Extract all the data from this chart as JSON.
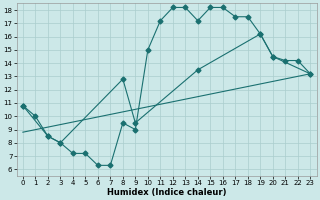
{
  "xlabel": "Humidex (Indice chaleur)",
  "background_color": "#cce8e8",
  "line_color": "#1a7070",
  "xlim": [
    -0.5,
    23.5
  ],
  "ylim": [
    5.5,
    18.5
  ],
  "xticks": [
    0,
    1,
    2,
    3,
    4,
    5,
    6,
    7,
    8,
    9,
    10,
    11,
    12,
    13,
    14,
    15,
    16,
    17,
    18,
    19,
    20,
    21,
    22,
    23
  ],
  "yticks": [
    6,
    7,
    8,
    9,
    10,
    11,
    12,
    13,
    14,
    15,
    16,
    17,
    18
  ],
  "series1_x": [
    0,
    1,
    2,
    3,
    4,
    5,
    6,
    7,
    8,
    9,
    10,
    11,
    12,
    13,
    14,
    15,
    16,
    17,
    18,
    19,
    20,
    21,
    22,
    23
  ],
  "series1_y": [
    10.8,
    10.0,
    8.5,
    8.0,
    7.2,
    7.2,
    6.3,
    6.3,
    9.5,
    9.0,
    15.0,
    17.2,
    18.2,
    18.2,
    17.2,
    18.2,
    18.2,
    17.5,
    17.5,
    16.2,
    14.5,
    14.2,
    14.2,
    13.2
  ],
  "series2_x": [
    0,
    2,
    3,
    8,
    9,
    14,
    19,
    20,
    23
  ],
  "series2_y": [
    10.8,
    8.5,
    8.0,
    12.8,
    9.5,
    13.5,
    16.2,
    14.5,
    13.2
  ],
  "series3_x": [
    0,
    23
  ],
  "series3_y": [
    8.8,
    13.2
  ],
  "grid_color": "#aacece",
  "markersize": 2.5
}
